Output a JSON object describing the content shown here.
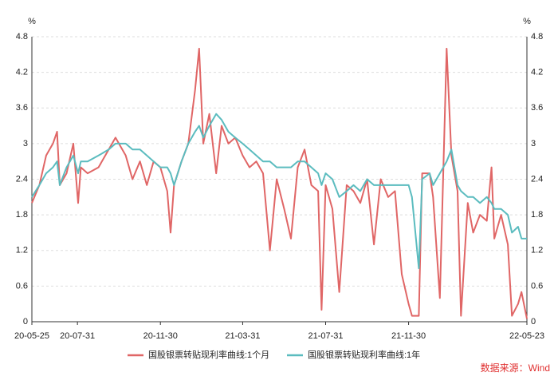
{
  "chart_data": {
    "type": "line",
    "ylabel": "%",
    "y2label": "%",
    "source": "数据来源：Wind",
    "x": [
      "20-05-25",
      "20-06-05",
      "20-06-15",
      "20-06-25",
      "20-07-01",
      "20-07-05",
      "20-07-15",
      "20-07-25",
      "20-08-01",
      "20-08-05",
      "20-08-15",
      "20-08-31",
      "20-09-15",
      "20-09-25",
      "20-10-10",
      "20-10-20",
      "20-10-31",
      "20-11-10",
      "20-11-20",
      "20-11-30",
      "20-12-10",
      "20-12-15",
      "20-12-20",
      "20-12-31",
      "21-01-10",
      "21-01-20",
      "21-01-26",
      "21-02-01",
      "21-02-10",
      "21-02-20",
      "21-02-28",
      "21-03-10",
      "21-03-20",
      "21-03-31",
      "21-04-10",
      "21-04-20",
      "21-04-30",
      "21-05-10",
      "21-05-20",
      "21-05-31",
      "21-06-10",
      "21-06-20",
      "21-06-30",
      "21-07-10",
      "21-07-20",
      "21-07-25",
      "21-07-31",
      "21-08-10",
      "21-08-20",
      "21-08-31",
      "21-09-10",
      "21-09-20",
      "21-09-30",
      "21-10-10",
      "21-10-20",
      "21-10-31",
      "21-11-10",
      "21-11-20",
      "21-11-30",
      "21-12-05",
      "21-12-15",
      "21-12-20",
      "21-12-31",
      "22-01-05",
      "22-01-15",
      "22-01-25",
      "22-02-01",
      "22-02-10",
      "22-02-15",
      "22-02-25",
      "22-03-05",
      "22-03-15",
      "22-03-25",
      "22-04-01",
      "22-04-05",
      "22-04-15",
      "22-04-25",
      "22-05-01",
      "22-05-10",
      "22-05-15",
      "22-05-23"
    ],
    "series": [
      {
        "name": "国股银票转贴现利率曲线:1个月",
        "color": "#e06666",
        "values": [
          2.0,
          2.3,
          2.8,
          3.0,
          3.2,
          2.3,
          2.5,
          3.0,
          2.0,
          2.6,
          2.5,
          2.6,
          2.9,
          3.1,
          2.8,
          2.4,
          2.7,
          2.3,
          2.7,
          2.6,
          2.2,
          1.5,
          2.3,
          2.7,
          3.0,
          3.9,
          4.6,
          3.0,
          3.5,
          2.5,
          3.3,
          3.0,
          3.1,
          2.8,
          2.6,
          2.7,
          2.5,
          1.2,
          2.4,
          1.9,
          1.4,
          2.6,
          2.9,
          2.3,
          2.2,
          0.2,
          2.3,
          1.9,
          0.5,
          2.3,
          2.2,
          2.0,
          2.4,
          1.3,
          2.4,
          2.1,
          2.2,
          0.8,
          0.3,
          0.1,
          0.1,
          2.5,
          2.5,
          2.1,
          0.4,
          4.6,
          2.8,
          2.2,
          0.1,
          2.0,
          1.5,
          1.8,
          1.7,
          2.6,
          1.4,
          1.8,
          1.3,
          0.1,
          0.3,
          0.5,
          0.05
        ]
      },
      {
        "name": "国股银票转贴现利率曲线:1年",
        "color": "#5bbcbf",
        "values": [
          2.1,
          2.3,
          2.5,
          2.6,
          2.7,
          2.3,
          2.6,
          2.8,
          2.5,
          2.7,
          2.7,
          2.8,
          2.9,
          3.0,
          3.0,
          2.9,
          2.9,
          2.8,
          2.7,
          2.6,
          2.6,
          2.5,
          2.3,
          2.7,
          3.0,
          3.2,
          3.3,
          3.1,
          3.3,
          3.5,
          3.4,
          3.2,
          3.1,
          3.0,
          2.9,
          2.8,
          2.7,
          2.7,
          2.6,
          2.6,
          2.6,
          2.7,
          2.7,
          2.6,
          2.5,
          2.3,
          2.5,
          2.4,
          2.1,
          2.2,
          2.3,
          2.2,
          2.4,
          2.3,
          2.3,
          2.3,
          2.3,
          2.3,
          2.3,
          2.1,
          0.9,
          2.4,
          2.5,
          2.3,
          2.5,
          2.7,
          2.9,
          2.3,
          2.2,
          2.1,
          2.1,
          2.0,
          2.1,
          2.0,
          1.9,
          1.9,
          1.8,
          1.5,
          1.6,
          1.4,
          1.4
        ]
      }
    ],
    "xlim": [
      "20-05-25",
      "22-05-23"
    ],
    "xticks": [
      "20-05-25",
      "20-07-31",
      "20-11-30",
      "21-03-31",
      "21-07-31",
      "21-11-30",
      "22-05-23"
    ],
    "ylim": [
      0,
      4.8
    ],
    "yticks": [
      0,
      0.6,
      1.2,
      1.8,
      2.4,
      3,
      3.6,
      4.2,
      4.8
    ],
    "y2lim": [
      0,
      4.8
    ],
    "y2ticks": [
      0,
      0.6,
      1.2,
      1.8,
      2.4,
      3,
      3.6,
      4.2,
      4.8
    ],
    "grid": true
  }
}
